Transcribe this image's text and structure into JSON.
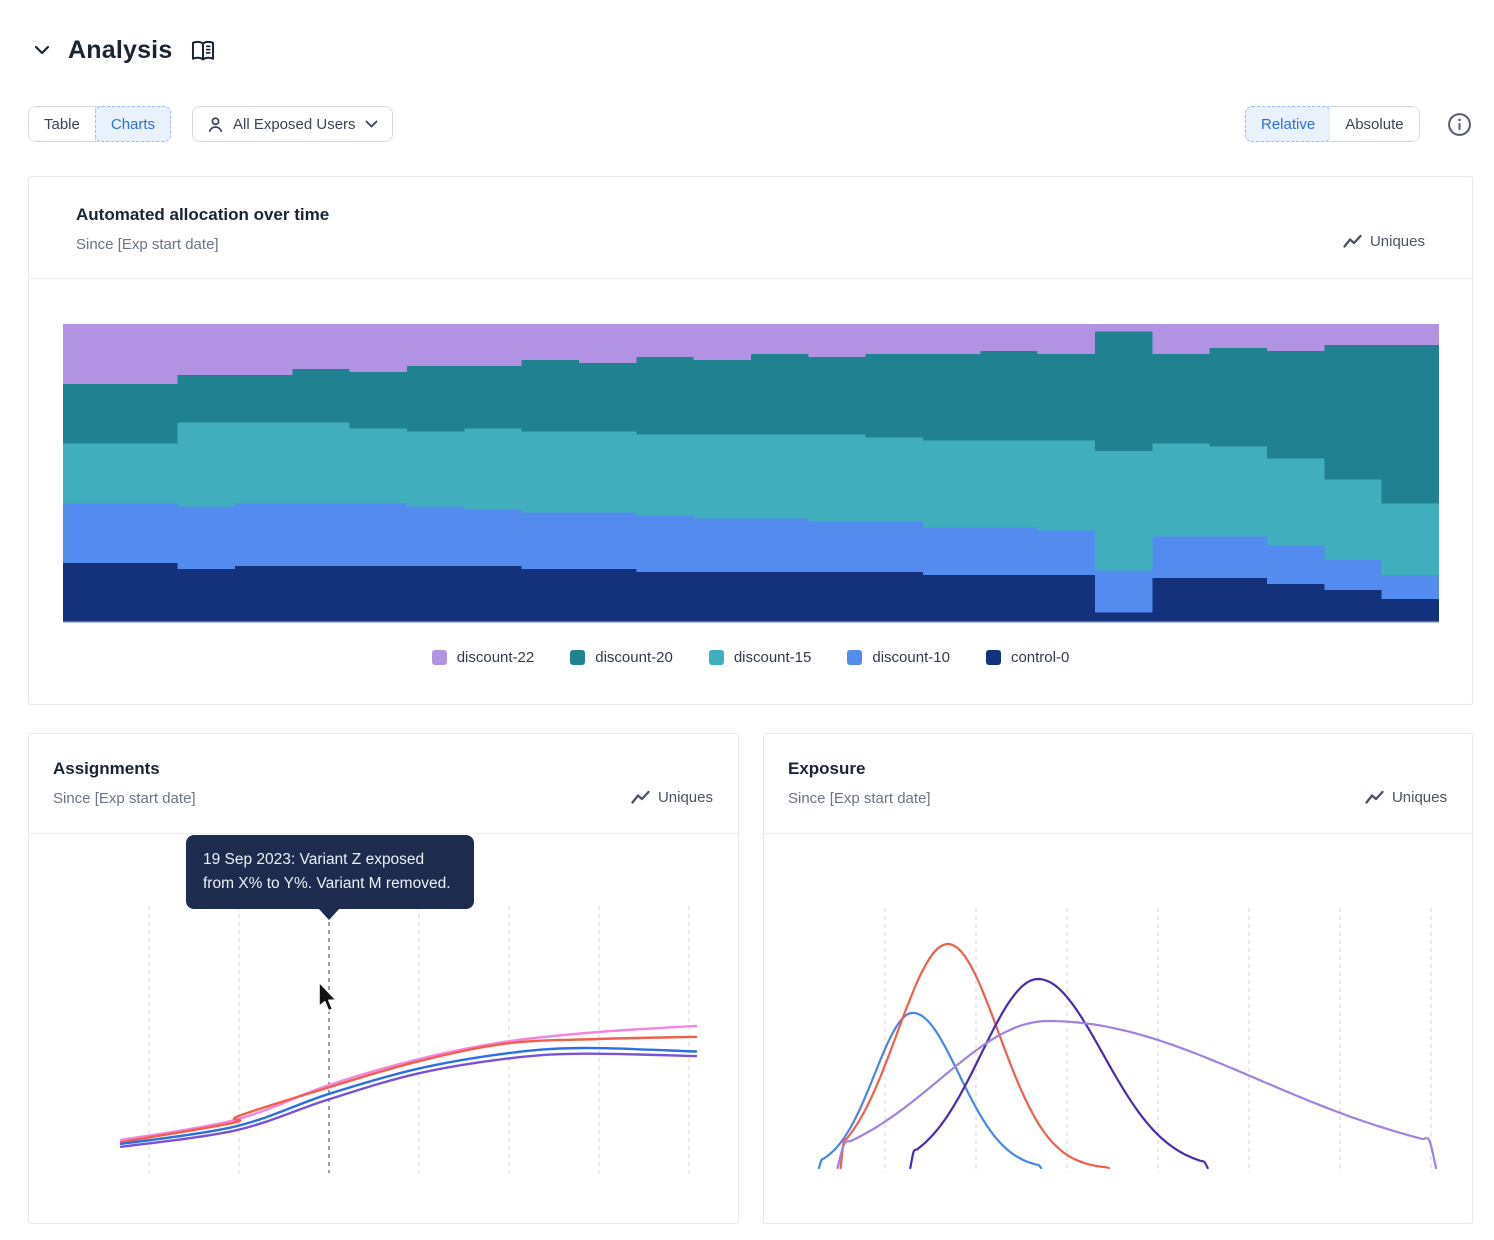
{
  "header": {
    "title": "Analysis"
  },
  "toolbar": {
    "view_tabs": {
      "table": "Table",
      "charts": "Charts",
      "selected": "Charts"
    },
    "audience_filter": {
      "label": "All Exposed Users"
    },
    "mode_tabs": {
      "relative": "Relative",
      "absolute": "Absolute",
      "selected": "Relative"
    }
  },
  "cards": {
    "allocation": {
      "title": "Automated allocation over time",
      "subtitle": "Since [Exp start date]",
      "metric_label": "Uniques"
    },
    "assignments": {
      "title": "Assignments",
      "subtitle": "Since [Exp start date]",
      "metric_label": "Uniques",
      "tooltip": "19 Sep 2023: Variant Z exposed from X% to Y%. Variant M removed."
    },
    "exposure": {
      "title": "Exposure",
      "subtitle": "Since [Exp start date]",
      "metric_label": "Uniques"
    }
  },
  "legend": {
    "items": [
      {
        "label": "discount-22",
        "color": "#b292e3"
      },
      {
        "label": "discount-20",
        "color": "#208191"
      },
      {
        "label": "discount-15",
        "color": "#41aebd"
      },
      {
        "label": "discount-10",
        "color": "#548bef"
      },
      {
        "label": "control-0",
        "color": "#14317c"
      }
    ]
  },
  "colors": {
    "accent_blue": "#2f6ee2",
    "accent_blue_bg": "#e9f1fd",
    "card_border": "#e6e8eb",
    "gridline": "#d9dcdf",
    "event_line": "#596273",
    "tooltip_bg": "#1d2b4e"
  },
  "chart_data": [
    {
      "id": "allocation-over-time",
      "type": "area",
      "stacked": true,
      "mode": "relative (100% stacked, stepped)",
      "title": "Automated allocation over time",
      "legend_position": "bottom",
      "grid": false,
      "ylim_pct": [
        0,
        100
      ],
      "series": [
        {
          "name": "discount-22",
          "color": "#b292e3",
          "values": [
            20,
            20,
            17,
            17,
            15,
            16,
            14,
            14,
            12,
            13,
            11,
            12,
            10,
            11,
            10,
            10,
            9,
            10,
            2.5,
            10,
            8,
            9,
            7,
            7
          ]
        },
        {
          "name": "discount-20",
          "color": "#208191",
          "values": [
            20,
            20,
            16,
            16,
            18,
            19,
            22,
            21,
            24,
            23,
            26,
            25,
            27,
            26,
            28,
            29,
            30,
            29,
            40,
            30,
            33,
            36,
            45,
            53
          ]
        },
        {
          "name": "discount-15",
          "color": "#41aebd",
          "values": [
            20,
            20,
            28,
            27,
            27,
            25,
            25,
            27,
            27,
            27,
            27,
            28,
            28,
            29,
            28,
            29,
            29,
            30,
            40,
            31,
            30,
            29,
            27,
            24
          ]
        },
        {
          "name": "discount-10",
          "color": "#548bef",
          "values": [
            20,
            20,
            21,
            21,
            21,
            21,
            20,
            19,
            19,
            19,
            19,
            18,
            18,
            17,
            17,
            16,
            16,
            15,
            14,
            14,
            14,
            13,
            10,
            8
          ]
        },
        {
          "name": "control-0",
          "color": "#14317c",
          "values": [
            20,
            20,
            18,
            19,
            19,
            19,
            19,
            19,
            18,
            18,
            17,
            17,
            17,
            17,
            17,
            16,
            16,
            16,
            3.5,
            15,
            15,
            13,
            11,
            8
          ]
        }
      ]
    },
    {
      "id": "assignments",
      "type": "line",
      "title": "Assignments",
      "grid": "vertical-dashed, 7 lines",
      "event_marker": {
        "gridline_index": 2,
        "label": "19 Sep 2023: Variant Z exposed from X% to Y%. Variant M removed."
      },
      "axes_labels_shown": false,
      "series": [
        {
          "name": "pink",
          "color": "#f486de",
          "points": [
            [
              0,
              0.876
            ],
            [
              0.2,
              0.8
            ],
            [
              0.36,
              0.672
            ],
            [
              0.515,
              0.575
            ],
            [
              0.67,
              0.508
            ],
            [
              0.83,
              0.472
            ],
            [
              1,
              0.449
            ]
          ]
        },
        {
          "name": "coral",
          "color": "#f15f4c",
          "points": [
            [
              0,
              0.884
            ],
            [
              0.195,
              0.812
            ],
            [
              0.205,
              0.786
            ],
            [
              0.36,
              0.68
            ],
            [
              0.515,
              0.583
            ],
            [
              0.67,
              0.515
            ],
            [
              0.83,
              0.498
            ],
            [
              1,
              0.49
            ]
          ]
        },
        {
          "name": "blue",
          "color": "#2d6ee2",
          "points": [
            [
              0,
              0.891
            ],
            [
              0.2,
              0.825
            ],
            [
              0.36,
              0.705
            ],
            [
              0.515,
              0.61
            ],
            [
              0.67,
              0.552
            ],
            [
              0.8,
              0.532
            ],
            [
              1,
              0.545
            ]
          ]
        },
        {
          "name": "purple",
          "color": "#7a52d8",
          "points": [
            [
              0,
              0.902
            ],
            [
              0.2,
              0.84
            ],
            [
              0.36,
              0.725
            ],
            [
              0.515,
              0.628
            ],
            [
              0.67,
              0.572
            ],
            [
              0.8,
              0.553
            ],
            [
              1,
              0.562
            ]
          ]
        }
      ]
    },
    {
      "id": "exposure",
      "type": "line",
      "title": "Exposure",
      "grid": "vertical-dashed, 7 lines",
      "axes_labels_shown": false,
      "curve_model": "bell (peak position / height / width as fractions of plot box)",
      "series": [
        {
          "name": "blue",
          "color": "#4a86e8",
          "peak_x": 0.152,
          "peak_h": 0.598,
          "sigma_l": 0.062,
          "sigma_r": 0.075,
          "x_start": 0.0,
          "x_end": 0.36
        },
        {
          "name": "coral",
          "color": "#f15f4c",
          "peak_x": 0.209,
          "peak_h": 0.862,
          "sigma_l": 0.082,
          "sigma_r": 0.082,
          "x_start": 0.035,
          "x_end": 0.47
        },
        {
          "name": "indigo",
          "color": "#4b2aae",
          "peak_x": 0.355,
          "peak_h": 0.728,
          "sigma_l": 0.092,
          "sigma_r": 0.105,
          "x_start": 0.148,
          "x_end": 0.63
        },
        {
          "name": "lavender",
          "color": "#a083de",
          "peak_x": 0.371,
          "peak_h": 0.567,
          "sigma_l": 0.175,
          "sigma_r": 0.34,
          "x_start": 0.03,
          "x_end": 1.0
        }
      ]
    }
  ]
}
